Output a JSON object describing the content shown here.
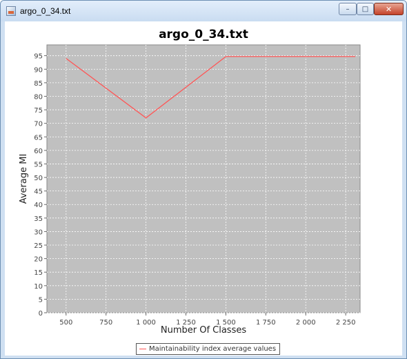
{
  "window": {
    "title": "argo_0_34.txt",
    "minimize_glyph": "–",
    "maximize_glyph": "□",
    "close_glyph": "✕",
    "icon": "java-app-icon"
  },
  "colors": {
    "plot_background": "#c0c0c0",
    "gridline": "#ffffff",
    "series_line": "#ff5555"
  },
  "chart_data": {
    "type": "line",
    "title": "argo_0_34.txt",
    "xlabel": "Number Of Classes",
    "ylabel": "Average MI",
    "xlim": [
      380,
      2340
    ],
    "ylim": [
      0,
      99
    ],
    "xticks": [
      500,
      750,
      1000,
      1250,
      1500,
      1750,
      2000,
      2250
    ],
    "xtick_labels": [
      "500",
      "750",
      "1 000",
      "1 250",
      "1 500",
      "1 750",
      "2 000",
      "2 250"
    ],
    "yticks": [
      0,
      5,
      10,
      15,
      20,
      25,
      30,
      35,
      40,
      45,
      50,
      55,
      60,
      65,
      70,
      75,
      80,
      85,
      90,
      95
    ],
    "ytick_labels": [
      "0",
      "5",
      "10",
      "15",
      "20",
      "25",
      "30",
      "35",
      "40",
      "45",
      "50",
      "55",
      "60",
      "65",
      "70",
      "75",
      "80",
      "85",
      "90",
      "95"
    ],
    "grid": true,
    "legend_position": "bottom-center",
    "series": [
      {
        "name": "Maintainability index average values",
        "x": [
          500,
          1000,
          1500,
          2310
        ],
        "y": [
          94,
          72,
          94.7,
          94.7
        ]
      }
    ]
  }
}
